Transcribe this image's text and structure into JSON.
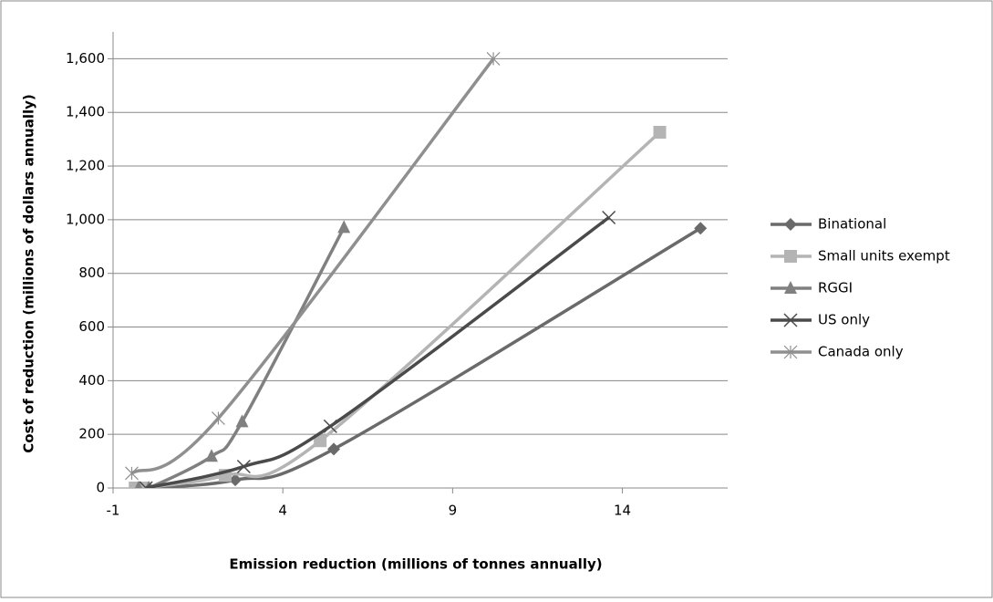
{
  "chart_data": {
    "type": "scatter",
    "x_label": "Emission reduction (millions of tonnes annually)",
    "y_label": "Cost of reduction (millions of dollars annually)",
    "xlim": [
      -1,
      17.1
    ],
    "xticks": [
      -1,
      4,
      9,
      14
    ],
    "ylim": [
      0,
      1700
    ],
    "yticks": [
      0,
      {
        "value": 200,
        "label": "200"
      },
      {
        "value": 400,
        "label": "400"
      },
      {
        "value": 600,
        "label": "600"
      },
      {
        "value": 800,
        "label": "800"
      },
      {
        "value": 1000,
        "label": "1,000"
      },
      {
        "value": 1200,
        "label": "1,200"
      },
      {
        "value": 1400,
        "label": "1,400"
      },
      {
        "value": 1600,
        "label": "1,600"
      }
    ],
    "grid": true,
    "smooth": true,
    "legend": "right",
    "series": [
      {
        "name": "Binational",
        "color": "#6a6a6a",
        "marker": "diamond",
        "x": [
          -0.2,
          0.05,
          2.6,
          5.5,
          16.3
        ],
        "values": [
          0,
          0,
          30,
          145,
          968
        ]
      },
      {
        "name": "Small units exempt",
        "color": "#b4b4b4",
        "marker": "square",
        "x": [
          -0.35,
          -0.1,
          2.3,
          5.1,
          15.1
        ],
        "values": [
          0,
          0,
          47,
          176,
          1326
        ]
      },
      {
        "name": "RGGI",
        "color": "#808080",
        "marker": "triangle",
        "x": [
          -0.25,
          0.05,
          1.9,
          2.8,
          5.8
        ],
        "values": [
          0,
          0,
          118,
          247,
          971
        ]
      },
      {
        "name": "US only",
        "color": "#4a4a4a",
        "marker": "x",
        "x": [
          -0.03,
          2.85,
          5.4,
          13.6
        ],
        "values": [
          0,
          80,
          230,
          1008
        ]
      },
      {
        "name": "Canada only",
        "color": "#8f8f8f",
        "marker": "star",
        "x": [
          -0.45,
          2.1,
          10.2
        ],
        "values": [
          55,
          260,
          1600
        ]
      }
    ]
  }
}
